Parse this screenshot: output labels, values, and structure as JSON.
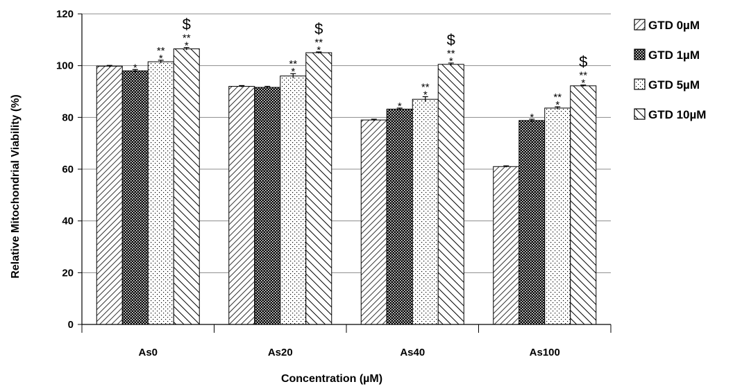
{
  "chart_data": {
    "type": "bar",
    "title": "",
    "xlabel": "Concentration (µM)",
    "ylabel": "Relative Mitochondrial Viability (%)",
    "ylim": [
      0,
      120
    ],
    "yticks": [
      "0",
      "20",
      "40",
      "60",
      "80",
      "100",
      "120"
    ],
    "grid": true,
    "legend_position": "right",
    "categories": [
      "As0",
      "As20",
      "As40",
      "As100"
    ],
    "series": [
      {
        "name": "GTD 0µM",
        "pattern": "diagonal-dense",
        "values": [
          99.8,
          92.0,
          79.0,
          61.0
        ],
        "errors": [
          0.3,
          0.3,
          0.3,
          0.3
        ],
        "annotations": [
          "",
          "",
          "",
          ""
        ]
      },
      {
        "name": "GTD 1µM",
        "pattern": "crosshatch-dark",
        "values": [
          98.0,
          91.6,
          83.2,
          78.8
        ],
        "errors": [
          0.5,
          0.4,
          0.4,
          0.5
        ],
        "annotations": [
          "*",
          "",
          "*",
          "*"
        ]
      },
      {
        "name": "GTD 5µM",
        "pattern": "dotted",
        "values": [
          101.5,
          96.0,
          87.0,
          83.6
        ],
        "errors": [
          0.6,
          0.9,
          1.0,
          0.5
        ],
        "annotations": [
          "**\n*",
          "**\n*",
          "**\n*",
          "**\n*"
        ]
      },
      {
        "name": "GTD 10µM",
        "pattern": "diagonal-wide",
        "values": [
          106.5,
          105.0,
          100.5,
          92.2
        ],
        "errors": [
          0.5,
          0.3,
          0.5,
          0.3
        ],
        "annotations": [
          "$\n**\n*",
          "$\n**\n*",
          "$\n**\n*",
          "$\n**\n*"
        ]
      }
    ]
  }
}
